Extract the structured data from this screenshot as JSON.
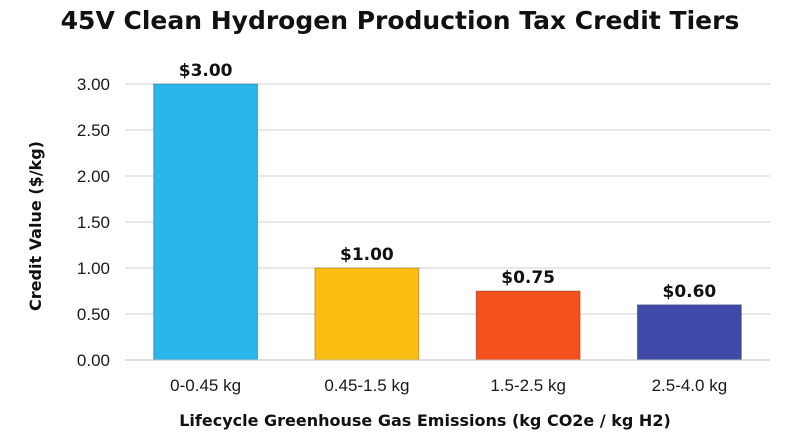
{
  "chart_data": {
    "type": "bar",
    "title": "45V Clean Hydrogen Production Tax Credit Tiers",
    "xlabel": "Lifecycle Greenhouse Gas Emissions (kg CO2e / kg H2)",
    "ylabel": "Credit Value ($/kg)",
    "categories": [
      "0-0.45 kg",
      "0.45-1.5 kg",
      "1.5-2.5 kg",
      "2.5-4.0 kg"
    ],
    "values": [
      3.0,
      1.0,
      0.75,
      0.6
    ],
    "data_labels": [
      "$3.00",
      "$1.00",
      "$0.75",
      "$0.60"
    ],
    "colors": [
      "#29b6ea",
      "#fbbd12",
      "#f4511e",
      "#3f4aa8"
    ],
    "ylim": [
      0,
      3.0
    ],
    "yticks": [
      "0.00",
      "0.50",
      "1.00",
      "1.50",
      "2.00",
      "2.50",
      "3.00"
    ],
    "ytick_values": [
      0,
      0.5,
      1.0,
      1.5,
      2.0,
      2.5,
      3.0
    ],
    "grid": true,
    "legend": "none"
  }
}
